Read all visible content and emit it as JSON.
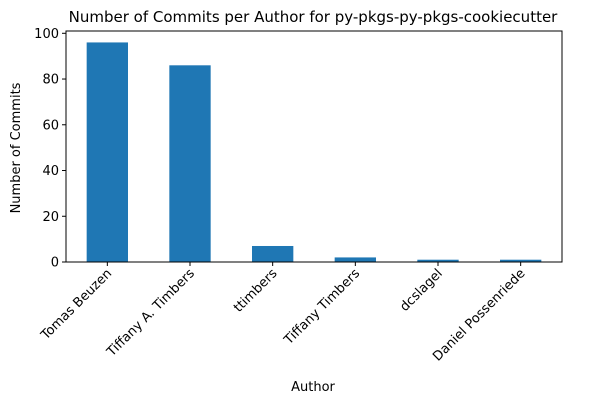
{
  "chart_data": {
    "type": "bar",
    "title": "Number of Commits per Author for py-pkgs-py-pkgs-cookiecutter",
    "xlabel": "Author",
    "ylabel": "Number of Commits",
    "categories": [
      "Tomas Beuzen",
      "Tiffany A. Timbers",
      "ttimbers",
      "Tiffany Timbers",
      "dcslagel",
      "Daniel Possenriede"
    ],
    "values": [
      96,
      86,
      7,
      2,
      1,
      1
    ],
    "ylim": [
      0,
      101
    ],
    "yticks": [
      0,
      20,
      40,
      60,
      80,
      100
    ],
    "grid": false,
    "legend": "none",
    "bar_color": "#1f77b4"
  }
}
